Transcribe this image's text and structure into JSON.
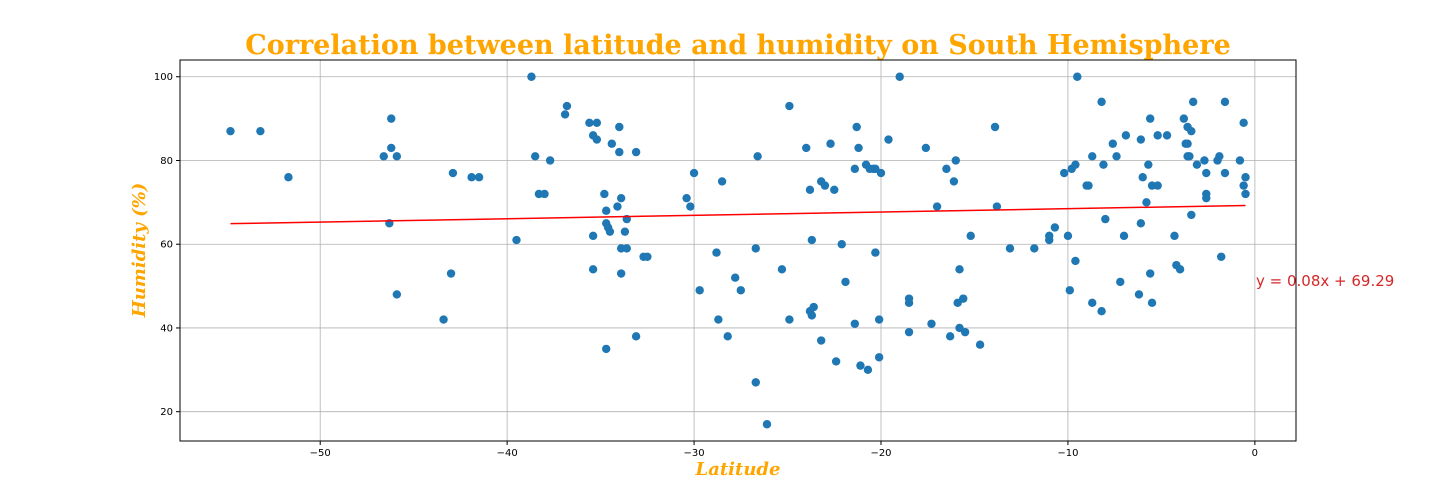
{
  "chart_data": {
    "type": "scatter",
    "title": "Correlation between latitude and humidity on South Hemisphere",
    "xlabel": "Latitude",
    "ylabel": "Humidity (%)",
    "xlim": [
      -57.5,
      2.2
    ],
    "ylim": [
      13,
      104
    ],
    "xticks": [
      -50,
      -40,
      -30,
      -20,
      -10,
      0
    ],
    "yticks": [
      20,
      40,
      60,
      80,
      100
    ],
    "grid": true,
    "colors": {
      "points": "#1f77b4",
      "regression": "#ff0000",
      "equation": "#d62728",
      "title": "#FFA500"
    },
    "regression": {
      "slope": 0.08,
      "intercept": 69.29,
      "x_range": [
        -54.8,
        -0.5
      ],
      "label": "y = 0.08x + 69.29"
    },
    "points": [
      [
        -54.8,
        87
      ],
      [
        -53.2,
        87
      ],
      [
        -51.7,
        76
      ],
      [
        -46.6,
        81
      ],
      [
        -46.3,
        65
      ],
      [
        -46.2,
        90
      ],
      [
        -46.2,
        83
      ],
      [
        -45.9,
        81
      ],
      [
        -45.9,
        48
      ],
      [
        -43.4,
        42
      ],
      [
        -43.0,
        53
      ],
      [
        -42.9,
        77
      ],
      [
        -41.9,
        76
      ],
      [
        -41.5,
        76
      ],
      [
        -39.5,
        61
      ],
      [
        -38.7,
        100
      ],
      [
        -38.5,
        81
      ],
      [
        -38.3,
        72
      ],
      [
        -38.0,
        72
      ],
      [
        -37.7,
        80
      ],
      [
        -36.8,
        93
      ],
      [
        -36.9,
        91
      ],
      [
        -35.6,
        89
      ],
      [
        -35.4,
        86
      ],
      [
        -35.2,
        85
      ],
      [
        -35.2,
        89
      ],
      [
        -35.4,
        62
      ],
      [
        -35.4,
        54
      ],
      [
        -34.8,
        72
      ],
      [
        -34.7,
        68
      ],
      [
        -34.7,
        65
      ],
      [
        -34.6,
        64
      ],
      [
        -34.5,
        63
      ],
      [
        -34.4,
        84
      ],
      [
        -34.1,
        69
      ],
      [
        -33.9,
        71
      ],
      [
        -34.0,
        88
      ],
      [
        -34.0,
        82
      ],
      [
        -33.9,
        59
      ],
      [
        -33.9,
        53
      ],
      [
        -33.7,
        63
      ],
      [
        -33.6,
        66
      ],
      [
        -33.6,
        59
      ],
      [
        -34.7,
        35
      ],
      [
        -33.1,
        82
      ],
      [
        -33.1,
        38
      ],
      [
        -32.7,
        57
      ],
      [
        -32.5,
        57
      ],
      [
        -30.4,
        71
      ],
      [
        -30.2,
        69
      ],
      [
        -30.0,
        77
      ],
      [
        -29.7,
        49
      ],
      [
        -28.8,
        58
      ],
      [
        -28.7,
        42
      ],
      [
        -28.5,
        75
      ],
      [
        -28.2,
        38
      ],
      [
        -27.8,
        52
      ],
      [
        -27.5,
        49
      ],
      [
        -26.6,
        81
      ],
      [
        -26.7,
        59
      ],
      [
        -26.7,
        27
      ],
      [
        -26.1,
        17
      ],
      [
        -25.3,
        54
      ],
      [
        -24.9,
        93
      ],
      [
        -24.9,
        42
      ],
      [
        -24.0,
        83
      ],
      [
        -23.8,
        73
      ],
      [
        -23.7,
        61
      ],
      [
        -23.8,
        44
      ],
      [
        -23.7,
        43
      ],
      [
        -23.6,
        45
      ],
      [
        -23.2,
        37
      ],
      [
        -23.2,
        75
      ],
      [
        -23.0,
        74
      ],
      [
        -22.7,
        84
      ],
      [
        -22.5,
        73
      ],
      [
        -22.4,
        32
      ],
      [
        -22.1,
        60
      ],
      [
        -21.9,
        51
      ],
      [
        -21.4,
        78
      ],
      [
        -21.3,
        88
      ],
      [
        -21.2,
        83
      ],
      [
        -21.4,
        41
      ],
      [
        -21.1,
        31
      ],
      [
        -20.8,
        79
      ],
      [
        -20.6,
        78
      ],
      [
        -20.4,
        78
      ],
      [
        -20.3,
        78
      ],
      [
        -20.7,
        30
      ],
      [
        -20.3,
        58
      ],
      [
        -20.1,
        42
      ],
      [
        -20.1,
        33
      ],
      [
        -20.0,
        77
      ],
      [
        -19.6,
        85
      ],
      [
        -19.0,
        100
      ],
      [
        -18.5,
        47
      ],
      [
        -18.5,
        46
      ],
      [
        -18.5,
        39
      ],
      [
        -17.6,
        83
      ],
      [
        -17.3,
        41
      ],
      [
        -17.0,
        69
      ],
      [
        -16.5,
        78
      ],
      [
        -16.3,
        38
      ],
      [
        -16.1,
        75
      ],
      [
        -16.0,
        80
      ],
      [
        -15.9,
        46
      ],
      [
        -15.8,
        54
      ],
      [
        -15.8,
        40
      ],
      [
        -15.6,
        47
      ],
      [
        -15.5,
        39
      ],
      [
        -15.2,
        62
      ],
      [
        -14.7,
        36
      ],
      [
        -13.9,
        88
      ],
      [
        -13.8,
        69
      ],
      [
        -13.1,
        59
      ],
      [
        -11.8,
        59
      ],
      [
        -11.0,
        61
      ],
      [
        -11.0,
        62
      ],
      [
        -10.7,
        64
      ],
      [
        -10.2,
        77
      ],
      [
        -10.0,
        62
      ],
      [
        -9.9,
        49
      ],
      [
        -9.8,
        78
      ],
      [
        -9.6,
        79
      ],
      [
        -9.6,
        56
      ],
      [
        -9.5,
        100
      ],
      [
        -9.0,
        74
      ],
      [
        -8.9,
        74
      ],
      [
        -8.7,
        81
      ],
      [
        -8.7,
        46
      ],
      [
        -8.2,
        44
      ],
      [
        -8.2,
        94
      ],
      [
        -8.1,
        79
      ],
      [
        -8.0,
        66
      ],
      [
        -7.6,
        84
      ],
      [
        -7.4,
        81
      ],
      [
        -7.2,
        51
      ],
      [
        -7.0,
        62
      ],
      [
        -6.9,
        86
      ],
      [
        -6.2,
        48
      ],
      [
        -6.1,
        85
      ],
      [
        -6.1,
        65
      ],
      [
        -6.0,
        76
      ],
      [
        -5.8,
        70
      ],
      [
        -5.7,
        79
      ],
      [
        -5.6,
        90
      ],
      [
        -5.6,
        53
      ],
      [
        -5.5,
        74
      ],
      [
        -5.5,
        46
      ],
      [
        -5.2,
        86
      ],
      [
        -5.2,
        74
      ],
      [
        -4.7,
        86
      ],
      [
        -4.3,
        62
      ],
      [
        -4.2,
        55
      ],
      [
        -4.0,
        54
      ],
      [
        -3.8,
        90
      ],
      [
        -3.7,
        84
      ],
      [
        -3.6,
        88
      ],
      [
        -3.6,
        84
      ],
      [
        -3.6,
        81
      ],
      [
        -3.5,
        81
      ],
      [
        -3.4,
        87
      ],
      [
        -3.3,
        94
      ],
      [
        -3.4,
        67
      ],
      [
        -3.1,
        79
      ],
      [
        -2.7,
        80
      ],
      [
        -2.6,
        77
      ],
      [
        -2.6,
        72
      ],
      [
        -2.6,
        71
      ],
      [
        -2.0,
        80
      ],
      [
        -1.9,
        81
      ],
      [
        -1.8,
        57
      ],
      [
        -1.6,
        94
      ],
      [
        -1.6,
        77
      ],
      [
        -0.8,
        80
      ],
      [
        -0.6,
        89
      ],
      [
        -0.6,
        74
      ],
      [
        -0.5,
        76
      ],
      [
        -0.5,
        72
      ]
    ]
  }
}
